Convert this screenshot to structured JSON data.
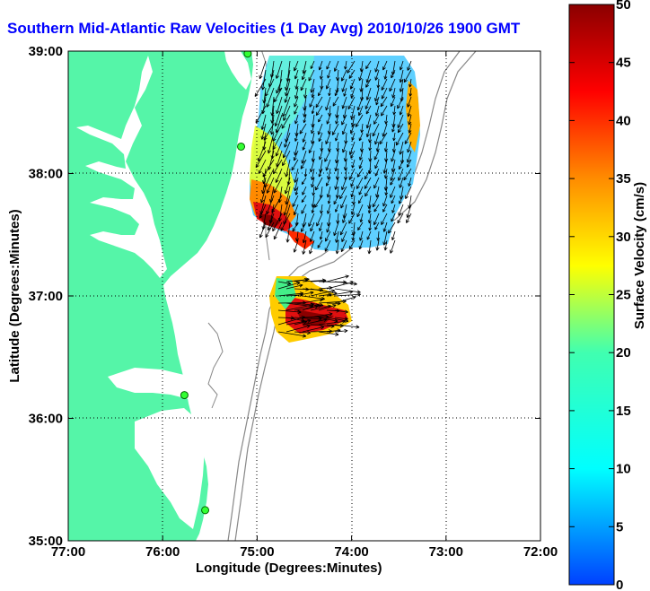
{
  "chart_data": {
    "type": "map",
    "title": "Southern Mid-Atlantic Raw Velocities (1 Day Avg) 2010/10/26 1900 GMT",
    "xlabel": "Longitude (Degrees:Minutes)",
    "ylabel": "Latitude (Degrees:Minutes)",
    "x_ticks": [
      "77:00",
      "76:00",
      "75:00",
      "74:00",
      "73:00",
      "72:00"
    ],
    "y_ticks": [
      "39:00",
      "38:00",
      "37:00",
      "36:00",
      "35:00"
    ],
    "xlim": [
      -77,
      -72
    ],
    "ylim": [
      35,
      39
    ],
    "grid": true,
    "colorbar": {
      "label": "Surface Velocity (cm/s)",
      "ticks": [
        "50",
        "45",
        "40",
        "35",
        "30",
        "25",
        "20",
        "15",
        "10",
        "5",
        "0"
      ],
      "range": [
        0,
        50
      ]
    },
    "colors": {
      "land": "#55f5a8",
      "title": "#0000ff",
      "bathymetry": "#888888",
      "vectors": "#000000"
    },
    "stations": [
      {
        "lon": -75.1,
        "lat": 38.98
      },
      {
        "lon": -75.17,
        "lat": 38.22
      },
      {
        "lon": -75.77,
        "lat": 36.19
      },
      {
        "lon": -75.55,
        "lat": 35.25
      }
    ]
  }
}
